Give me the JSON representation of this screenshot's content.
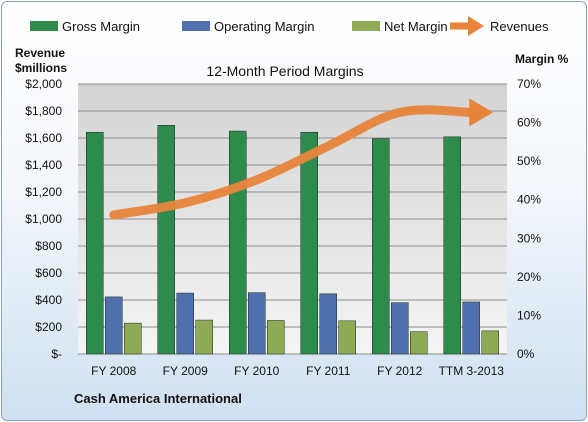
{
  "chart_data": {
    "type": "bar",
    "title": "12-Month Period Margins",
    "company": "Cash America International",
    "categories": [
      "FY 2008",
      "FY 2009",
      "FY 2010",
      "FY 2011",
      "FY 2012",
      "TTM 3-2013"
    ],
    "left_axis": {
      "label_line1": "Revenue",
      "label_line2": "$millions",
      "min": 0,
      "max": 2000,
      "step": 200,
      "ticks": [
        "$-",
        "$200",
        "$400",
        "$600",
        "$800",
        "$1,000",
        "$1,200",
        "$1,400",
        "$1,600",
        "$1,800",
        "$2,000"
      ]
    },
    "right_axis": {
      "label": "Margin %",
      "min": 0,
      "max": 70,
      "step": 10,
      "ticks": [
        "0%",
        "10%",
        "20%",
        "30%",
        "40%",
        "50%",
        "60%",
        "70%"
      ]
    },
    "series": [
      {
        "name": "Gross Margin",
        "axis": "right",
        "color": "#2e8b4e",
        "values": [
          57.5,
          59.3,
          57.8,
          57.5,
          55.8,
          56.3
        ]
      },
      {
        "name": "Operating Margin",
        "axis": "right",
        "color": "#4f6fad",
        "values": [
          14.8,
          15.8,
          15.9,
          15.6,
          13.3,
          13.5
        ]
      },
      {
        "name": "Net Margin",
        "axis": "right",
        "color": "#8faa55",
        "values": [
          8.0,
          8.8,
          8.7,
          8.6,
          5.8,
          6.0
        ]
      },
      {
        "name": "Revenues",
        "axis": "left",
        "type": "line",
        "color": "#e8843a",
        "values": [
          1030,
          1120,
          1290,
          1540,
          1790,
          1790
        ]
      }
    ],
    "legend_position": "top",
    "grid": "horizontal"
  }
}
